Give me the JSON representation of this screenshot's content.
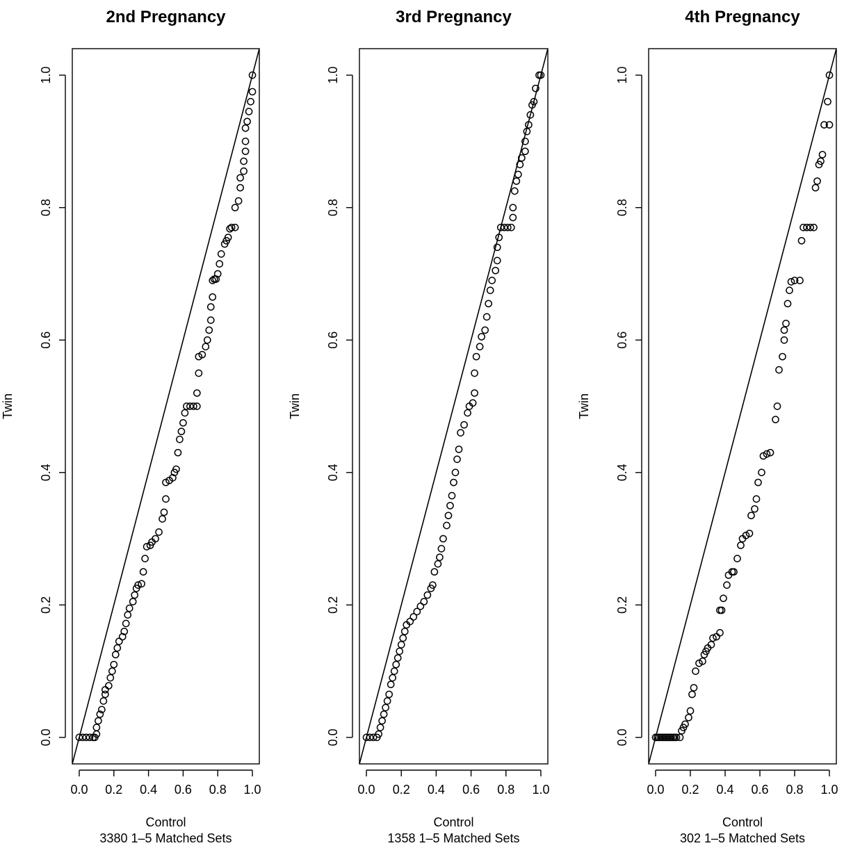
{
  "chart_data": [
    {
      "type": "scatter",
      "title": "2nd Pregnancy",
      "xlabel": "Control",
      "xlabel_sub": "3380 1–5 Matched Sets",
      "ylabel": "Twin",
      "xlim": [
        -0.04,
        1.04
      ],
      "ylim": [
        -0.04,
        1.04
      ],
      "x_ticks": [
        "0.0",
        "0.2",
        "0.4",
        "0.6",
        "0.8",
        "1.0"
      ],
      "y_ticks": [
        "0.0",
        "0.2",
        "0.4",
        "0.6",
        "0.8",
        "1.0"
      ],
      "reference_line": "y = x",
      "points": [
        [
          0.0,
          0.0
        ],
        [
          0.02,
          0.0
        ],
        [
          0.04,
          0.0
        ],
        [
          0.06,
          0.0
        ],
        [
          0.08,
          0.0
        ],
        [
          0.09,
          0.0
        ],
        [
          0.1,
          0.005
        ],
        [
          0.1,
          0.015
        ],
        [
          0.11,
          0.025
        ],
        [
          0.12,
          0.035
        ],
        [
          0.13,
          0.042
        ],
        [
          0.14,
          0.055
        ],
        [
          0.15,
          0.065
        ],
        [
          0.15,
          0.072
        ],
        [
          0.17,
          0.078
        ],
        [
          0.18,
          0.09
        ],
        [
          0.19,
          0.1
        ],
        [
          0.2,
          0.11
        ],
        [
          0.21,
          0.125
        ],
        [
          0.22,
          0.135
        ],
        [
          0.23,
          0.145
        ],
        [
          0.25,
          0.152
        ],
        [
          0.26,
          0.16
        ],
        [
          0.27,
          0.172
        ],
        [
          0.28,
          0.185
        ],
        [
          0.29,
          0.195
        ],
        [
          0.31,
          0.205
        ],
        [
          0.32,
          0.215
        ],
        [
          0.33,
          0.225
        ],
        [
          0.34,
          0.23
        ],
        [
          0.36,
          0.232
        ],
        [
          0.37,
          0.25
        ],
        [
          0.38,
          0.27
        ],
        [
          0.39,
          0.288
        ],
        [
          0.41,
          0.29
        ],
        [
          0.42,
          0.295
        ],
        [
          0.44,
          0.3
        ],
        [
          0.46,
          0.31
        ],
        [
          0.48,
          0.33
        ],
        [
          0.49,
          0.34
        ],
        [
          0.5,
          0.36
        ],
        [
          0.5,
          0.385
        ],
        [
          0.52,
          0.388
        ],
        [
          0.54,
          0.392
        ],
        [
          0.55,
          0.4
        ],
        [
          0.56,
          0.405
        ],
        [
          0.57,
          0.43
        ],
        [
          0.58,
          0.45
        ],
        [
          0.59,
          0.462
        ],
        [
          0.6,
          0.475
        ],
        [
          0.61,
          0.49
        ],
        [
          0.62,
          0.5
        ],
        [
          0.64,
          0.5
        ],
        [
          0.66,
          0.5
        ],
        [
          0.68,
          0.5
        ],
        [
          0.68,
          0.52
        ],
        [
          0.69,
          0.55
        ],
        [
          0.69,
          0.575
        ],
        [
          0.71,
          0.578
        ],
        [
          0.73,
          0.59
        ],
        [
          0.74,
          0.6
        ],
        [
          0.75,
          0.615
        ],
        [
          0.76,
          0.63
        ],
        [
          0.76,
          0.65
        ],
        [
          0.77,
          0.665
        ],
        [
          0.77,
          0.69
        ],
        [
          0.78,
          0.692
        ],
        [
          0.79,
          0.692
        ],
        [
          0.8,
          0.7
        ],
        [
          0.81,
          0.715
        ],
        [
          0.82,
          0.73
        ],
        [
          0.84,
          0.745
        ],
        [
          0.85,
          0.75
        ],
        [
          0.86,
          0.755
        ],
        [
          0.87,
          0.768
        ],
        [
          0.88,
          0.77
        ],
        [
          0.9,
          0.77
        ],
        [
          0.9,
          0.8
        ],
        [
          0.92,
          0.81
        ],
        [
          0.93,
          0.83
        ],
        [
          0.93,
          0.845
        ],
        [
          0.95,
          0.855
        ],
        [
          0.95,
          0.87
        ],
        [
          0.96,
          0.885
        ],
        [
          0.96,
          0.9
        ],
        [
          0.96,
          0.92
        ],
        [
          0.97,
          0.93
        ],
        [
          0.98,
          0.945
        ],
        [
          0.99,
          0.96
        ],
        [
          1.0,
          0.975
        ],
        [
          1.0,
          1.0
        ]
      ]
    },
    {
      "type": "scatter",
      "title": "3rd Pregnancy",
      "xlabel": "Control",
      "xlabel_sub": "1358 1–5 Matched Sets",
      "ylabel": "Twin",
      "xlim": [
        -0.04,
        1.04
      ],
      "ylim": [
        -0.04,
        1.04
      ],
      "x_ticks": [
        "0.0",
        "0.2",
        "0.4",
        "0.6",
        "0.8",
        "1.0"
      ],
      "y_ticks": [
        "0.0",
        "0.2",
        "0.4",
        "0.6",
        "0.8",
        "1.0"
      ],
      "reference_line": "y = x",
      "points": [
        [
          0.0,
          0.0
        ],
        [
          0.02,
          0.0
        ],
        [
          0.04,
          0.0
        ],
        [
          0.06,
          0.0
        ],
        [
          0.07,
          0.005
        ],
        [
          0.08,
          0.015
        ],
        [
          0.09,
          0.025
        ],
        [
          0.1,
          0.035
        ],
        [
          0.11,
          0.045
        ],
        [
          0.12,
          0.055
        ],
        [
          0.13,
          0.065
        ],
        [
          0.14,
          0.08
        ],
        [
          0.15,
          0.09
        ],
        [
          0.16,
          0.1
        ],
        [
          0.17,
          0.11
        ],
        [
          0.18,
          0.12
        ],
        [
          0.19,
          0.13
        ],
        [
          0.2,
          0.14
        ],
        [
          0.21,
          0.15
        ],
        [
          0.22,
          0.16
        ],
        [
          0.23,
          0.17
        ],
        [
          0.25,
          0.175
        ],
        [
          0.27,
          0.182
        ],
        [
          0.29,
          0.19
        ],
        [
          0.31,
          0.198
        ],
        [
          0.33,
          0.205
        ],
        [
          0.35,
          0.215
        ],
        [
          0.37,
          0.225
        ],
        [
          0.38,
          0.23
        ],
        [
          0.39,
          0.25
        ],
        [
          0.41,
          0.262
        ],
        [
          0.42,
          0.272
        ],
        [
          0.43,
          0.285
        ],
        [
          0.44,
          0.3
        ],
        [
          0.46,
          0.32
        ],
        [
          0.47,
          0.335
        ],
        [
          0.48,
          0.35
        ],
        [
          0.49,
          0.365
        ],
        [
          0.5,
          0.385
        ],
        [
          0.51,
          0.4
        ],
        [
          0.52,
          0.42
        ],
        [
          0.53,
          0.435
        ],
        [
          0.54,
          0.46
        ],
        [
          0.56,
          0.472
        ],
        [
          0.58,
          0.49
        ],
        [
          0.59,
          0.5
        ],
        [
          0.61,
          0.505
        ],
        [
          0.62,
          0.52
        ],
        [
          0.62,
          0.55
        ],
        [
          0.63,
          0.575
        ],
        [
          0.65,
          0.59
        ],
        [
          0.66,
          0.605
        ],
        [
          0.68,
          0.615
        ],
        [
          0.69,
          0.635
        ],
        [
          0.7,
          0.655
        ],
        [
          0.71,
          0.675
        ],
        [
          0.72,
          0.69
        ],
        [
          0.74,
          0.705
        ],
        [
          0.75,
          0.72
        ],
        [
          0.75,
          0.74
        ],
        [
          0.76,
          0.755
        ],
        [
          0.77,
          0.77
        ],
        [
          0.79,
          0.77
        ],
        [
          0.81,
          0.77
        ],
        [
          0.83,
          0.77
        ],
        [
          0.84,
          0.785
        ],
        [
          0.84,
          0.8
        ],
        [
          0.85,
          0.825
        ],
        [
          0.86,
          0.84
        ],
        [
          0.87,
          0.85
        ],
        [
          0.88,
          0.865
        ],
        [
          0.89,
          0.875
        ],
        [
          0.91,
          0.885
        ],
        [
          0.91,
          0.9
        ],
        [
          0.92,
          0.915
        ],
        [
          0.93,
          0.925
        ],
        [
          0.94,
          0.94
        ],
        [
          0.95,
          0.955
        ],
        [
          0.96,
          0.96
        ],
        [
          0.97,
          0.98
        ],
        [
          0.99,
          1.0
        ],
        [
          1.0,
          1.0
        ]
      ]
    },
    {
      "type": "scatter",
      "title": "4th Pregnancy",
      "xlabel": "Control",
      "xlabel_sub": "302 1–5 Matched Sets",
      "ylabel": "Twin",
      "xlim": [
        -0.04,
        1.04
      ],
      "ylim": [
        -0.04,
        1.04
      ],
      "x_ticks": [
        "0.0",
        "0.2",
        "0.4",
        "0.6",
        "0.8",
        "1.0"
      ],
      "y_ticks": [
        "0.0",
        "0.2",
        "0.4",
        "0.6",
        "0.8",
        "1.0"
      ],
      "reference_line": "y = x",
      "points": [
        [
          0.0,
          0.0
        ],
        [
          0.01,
          0.0
        ],
        [
          0.02,
          0.0
        ],
        [
          0.03,
          0.0
        ],
        [
          0.04,
          0.0
        ],
        [
          0.05,
          0.0
        ],
        [
          0.06,
          0.0
        ],
        [
          0.07,
          0.0
        ],
        [
          0.08,
          0.0
        ],
        [
          0.09,
          0.0
        ],
        [
          0.1,
          0.0
        ],
        [
          0.11,
          0.0
        ],
        [
          0.12,
          0.0
        ],
        [
          0.14,
          0.0
        ],
        [
          0.15,
          0.01
        ],
        [
          0.16,
          0.015
        ],
        [
          0.17,
          0.02
        ],
        [
          0.19,
          0.03
        ],
        [
          0.2,
          0.04
        ],
        [
          0.21,
          0.065
        ],
        [
          0.22,
          0.075
        ],
        [
          0.23,
          0.1
        ],
        [
          0.25,
          0.112
        ],
        [
          0.27,
          0.115
        ],
        [
          0.28,
          0.125
        ],
        [
          0.29,
          0.13
        ],
        [
          0.3,
          0.135
        ],
        [
          0.32,
          0.14
        ],
        [
          0.33,
          0.15
        ],
        [
          0.35,
          0.152
        ],
        [
          0.37,
          0.158
        ],
        [
          0.37,
          0.192
        ],
        [
          0.38,
          0.192
        ],
        [
          0.39,
          0.21
        ],
        [
          0.41,
          0.23
        ],
        [
          0.42,
          0.245
        ],
        [
          0.44,
          0.25
        ],
        [
          0.45,
          0.25
        ],
        [
          0.47,
          0.27
        ],
        [
          0.49,
          0.29
        ],
        [
          0.5,
          0.3
        ],
        [
          0.52,
          0.305
        ],
        [
          0.54,
          0.308
        ],
        [
          0.55,
          0.335
        ],
        [
          0.57,
          0.345
        ],
        [
          0.58,
          0.36
        ],
        [
          0.59,
          0.385
        ],
        [
          0.61,
          0.4
        ],
        [
          0.62,
          0.425
        ],
        [
          0.64,
          0.428
        ],
        [
          0.66,
          0.43
        ],
        [
          0.69,
          0.48
        ],
        [
          0.7,
          0.5
        ],
        [
          0.71,
          0.555
        ],
        [
          0.73,
          0.575
        ],
        [
          0.74,
          0.6
        ],
        [
          0.74,
          0.615
        ],
        [
          0.75,
          0.625
        ],
        [
          0.76,
          0.655
        ],
        [
          0.77,
          0.675
        ],
        [
          0.78,
          0.688
        ],
        [
          0.8,
          0.69
        ],
        [
          0.83,
          0.69
        ],
        [
          0.84,
          0.75
        ],
        [
          0.85,
          0.77
        ],
        [
          0.87,
          0.77
        ],
        [
          0.89,
          0.77
        ],
        [
          0.91,
          0.77
        ],
        [
          0.92,
          0.83
        ],
        [
          0.93,
          0.84
        ],
        [
          0.94,
          0.865
        ],
        [
          0.95,
          0.87
        ],
        [
          0.96,
          0.88
        ],
        [
          0.97,
          0.925
        ],
        [
          0.99,
          0.96
        ],
        [
          1.0,
          0.925
        ],
        [
          1.0,
          1.0
        ]
      ]
    }
  ]
}
